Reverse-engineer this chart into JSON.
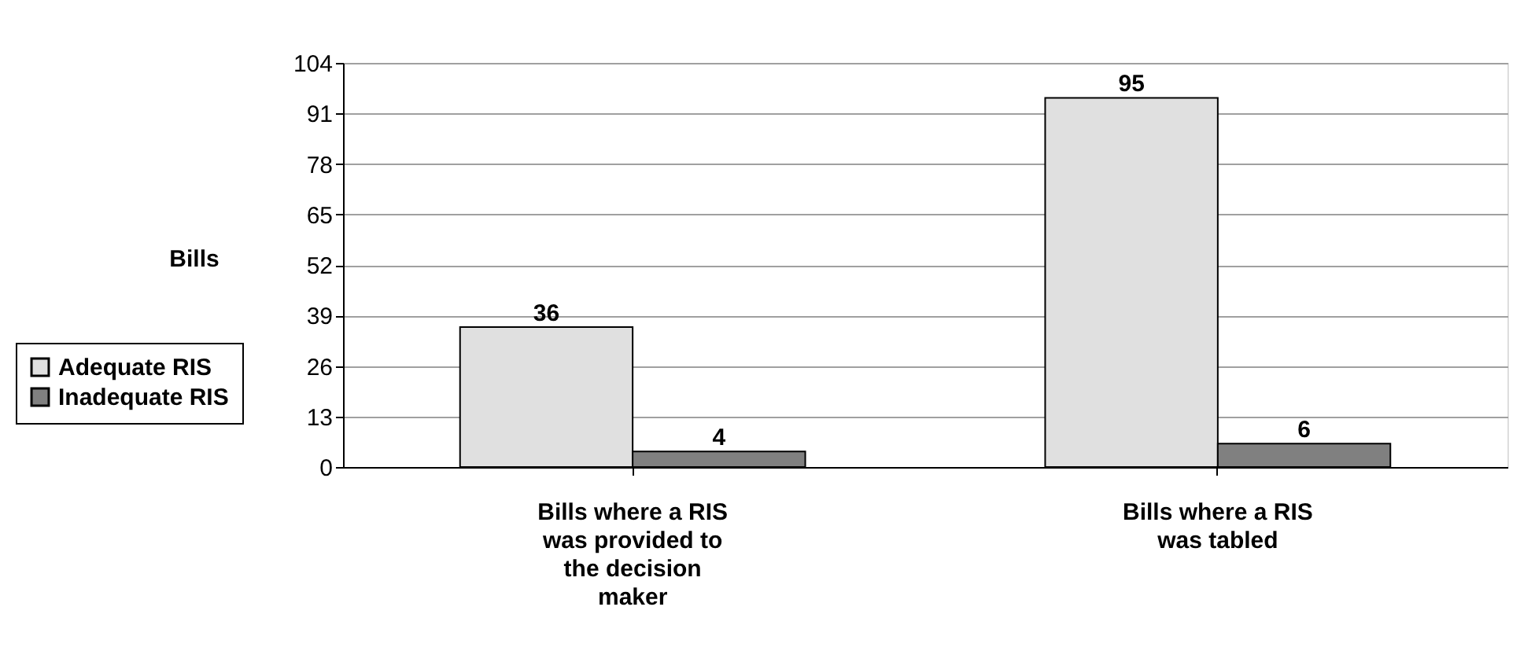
{
  "chart_data": {
    "type": "bar",
    "ylabel": "Bills",
    "categories": [
      "Bills where a RIS\nwas provided to\nthe decision\nmaker",
      "Bills where a RIS\nwas tabled"
    ],
    "series": [
      {
        "name": "Adequate RIS",
        "color": "#e0e0e0",
        "values": [
          36,
          95
        ]
      },
      {
        "name": "Inadequate RIS",
        "color": "#808080",
        "values": [
          4,
          6
        ]
      }
    ],
    "ylim": [
      0,
      104
    ],
    "yticks": [
      0,
      13,
      26,
      39,
      52,
      65,
      78,
      91,
      104
    ],
    "grid": "y",
    "legend": "left",
    "data_labels": true
  }
}
